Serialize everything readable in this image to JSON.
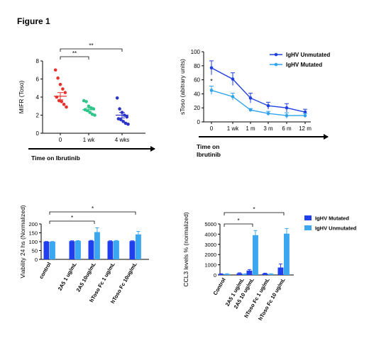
{
  "figure_title": "Figure 1",
  "colors": {
    "red": "#e8322b",
    "green": "#2ec48a",
    "blue": "#2b34c7",
    "dark_blue": "#1f3fe0",
    "light_blue": "#2fa3ee",
    "bar_dark": "#1e3ef0",
    "bar_light": "#3aa7f0"
  },
  "chart_data": [
    {
      "type": "scatter",
      "ylabel": "MIFR (Toso)",
      "xlabel": "Time on Ibrutinib",
      "ylim": [
        0,
        8
      ],
      "yticks": [
        "0",
        "2",
        "4",
        "6",
        "8"
      ],
      "categories": [
        "0",
        "1 wk",
        "4 wks"
      ],
      "points": [
        [
          7.0,
          6.1,
          5.4,
          4.9,
          4.5,
          4.0,
          3.6,
          3.5,
          3.2,
          2.9
        ],
        [
          3.6,
          3.5,
          3.0,
          2.8,
          2.7,
          2.6,
          2.5,
          2.3,
          2.1,
          2.0
        ],
        [
          3.9,
          2.7,
          2.3,
          2.0,
          1.8,
          1.6,
          1.5,
          1.3,
          1.1,
          1.0
        ]
      ],
      "means": [
        4.1,
        2.6,
        2.0
      ],
      "sems": [
        0.4,
        0.2,
        0.3
      ],
      "significance": [
        {
          "from": 0,
          "to": 1,
          "label": "**"
        },
        {
          "from": 0,
          "to": 2,
          "label": "**"
        }
      ]
    },
    {
      "type": "line",
      "ylabel": "sToso (abitrary units)",
      "xlabel": "Time on Ibrutinib",
      "ylim": [
        0,
        100
      ],
      "yticks": [
        "0",
        "20",
        "40",
        "60",
        "80",
        "100"
      ],
      "categories": [
        "0",
        "1 wk",
        "1 m",
        "3 m",
        "6 m",
        "12 m"
      ],
      "series": [
        {
          "name": "IgHV Unmutated",
          "values": [
            77,
            61,
            34,
            23,
            20,
            14
          ],
          "errors": [
            10,
            9,
            7,
            5,
            6,
            4
          ]
        },
        {
          "name": "IgHV Mutated",
          "values": [
            45,
            36,
            17,
            12,
            9,
            9
          ],
          "errors": [
            6,
            5,
            2,
            3,
            4,
            3
          ]
        }
      ],
      "annotations": [
        {
          "category": 0,
          "label": "*"
        }
      ]
    },
    {
      "type": "bar",
      "ylabel": "Viability 24 hs (Normalized)",
      "ylim": [
        0,
        200
      ],
      "yticks": [
        "0",
        "50",
        "100",
        "150",
        "200"
      ],
      "categories": [
        "control",
        "2A5 1 ug/mL",
        "2A5 10ug/mL",
        "hToso Fc 1 ug/mL",
        "hToso Fc 10ug/mL"
      ],
      "series": [
        {
          "name": "IgHV Mutated",
          "values": [
            100,
            103,
            105,
            103,
            103
          ],
          "errors": [
            1,
            2,
            2,
            2,
            2
          ]
        },
        {
          "name": "IgHV Unmutated",
          "values": [
            100,
            104,
            154,
            105,
            141
          ],
          "errors": [
            1,
            2,
            24,
            2,
            17
          ]
        }
      ],
      "significance": [
        {
          "from": 0,
          "to": 2,
          "label": "*"
        },
        {
          "from": 0,
          "to": 4,
          "label": "*"
        }
      ]
    },
    {
      "type": "bar",
      "ylabel": "CCL3 levels % (normalized)",
      "ylim": [
        0,
        5000
      ],
      "yticks": [
        "0",
        "1000",
        "2000",
        "3000",
        "4000",
        "5000"
      ],
      "categories": [
        "Control",
        "2A5 1 ug/mL",
        "2A5 10 ug/mL",
        "hToso Fc 1 ug/mL",
        "hToso Fc 10 ug/mL"
      ],
      "series": [
        {
          "name": "IgHV Mutated",
          "values": [
            100,
            160,
            430,
            140,
            730
          ],
          "errors": [
            20,
            50,
            100,
            40,
            350
          ]
        },
        {
          "name": "IgHV Unmutated",
          "values": [
            100,
            100,
            3900,
            100,
            4050
          ],
          "errors": [
            20,
            20,
            450,
            20,
            500
          ]
        }
      ],
      "significance": [
        {
          "from": 0,
          "to": 2,
          "label": "*"
        },
        {
          "from": 0,
          "to": 4,
          "label": "*"
        }
      ]
    }
  ]
}
